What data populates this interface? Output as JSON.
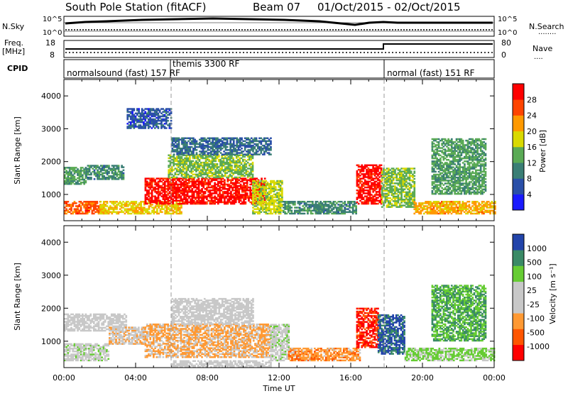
{
  "header": {
    "station": "South Pole Station (fitACF)",
    "beam": "Beam 07",
    "date_range": "01/Oct/2015 - 02/Oct/2015"
  },
  "panels": {
    "nsky_label": "N.Sky",
    "nsky_ticks": [
      "10^5",
      "10^0"
    ],
    "nsearch_label": "N.Search",
    "nsearch_ticks": [
      "10^5",
      "10^0"
    ],
    "freq_label_line1": "Freq.",
    "freq_label_line2": "[MHz]",
    "freq_ticks": [
      "18",
      "8"
    ],
    "nave_label": "Nave",
    "nave_ticks": [
      "80",
      "0"
    ],
    "cpid_label": "CPID",
    "cpid_segments": [
      {
        "label": "normalsound (fast) 157 RF",
        "start": "00:00",
        "end": "06:00"
      },
      {
        "label": "themis 3300 RF",
        "start": "06:00",
        "end": "18:00"
      },
      {
        "label": "normal (fast) 151 RF",
        "start": "18:00",
        "end": "24:00"
      }
    ]
  },
  "axes": {
    "ylabel": "Slant Range [km]",
    "xlabel": "Time UT",
    "x_ticks": [
      "00:00",
      "04:00",
      "08:00",
      "12:00",
      "16:00",
      "20:00",
      "00:00"
    ],
    "y_ticks": [
      "1000",
      "2000",
      "3000",
      "4000"
    ]
  },
  "colorbars": {
    "power": {
      "label": "Power [dB]",
      "ticks": [
        "4",
        "8",
        "12",
        "16",
        "20",
        "24",
        "28"
      ]
    },
    "velocity": {
      "label": "Velocity [m s⁻¹]",
      "ticks": [
        "1000",
        "500",
        "100",
        "25",
        "-25",
        "-100",
        "-500",
        "-1000"
      ]
    }
  },
  "chart_data": [
    {
      "type": "heatmap",
      "name_printed": "Power [dB]",
      "xlabel": "Time UT",
      "ylabel": "Slant Range [km]",
      "x_unit": "hours UT",
      "xlim": [
        0,
        24
      ],
      "ylim": [
        200,
        4500
      ],
      "zlim": [
        0,
        30
      ],
      "colors": [
        "#1a1aff",
        "#2a4fa8",
        "#3a7e75",
        "#5aaa55",
        "#d9d900",
        "#ff9900",
        "#ff4400",
        "#ff0000"
      ],
      "bands": [
        {
          "t0": 0.0,
          "t1": 1.2,
          "r0": 1300,
          "r1": 1800,
          "z": 12
        },
        {
          "t0": 1.2,
          "t1": 3.3,
          "r0": 1450,
          "r1": 1900,
          "z": 10
        },
        {
          "t0": 0.0,
          "t1": 2.0,
          "r0": 400,
          "r1": 800,
          "z": 24
        },
        {
          "t0": 2.0,
          "t1": 6.5,
          "r0": 400,
          "r1": 800,
          "z": 18
        },
        {
          "t0": 4.5,
          "t1": 11.2,
          "r0": 700,
          "r1": 1500,
          "z": 28
        },
        {
          "t0": 5.8,
          "t1": 10.5,
          "r0": 1500,
          "r1": 2200,
          "z": 14
        },
        {
          "t0": 6.0,
          "t1": 11.5,
          "r0": 2200,
          "r1": 2700,
          "z": 8
        },
        {
          "t0": 10.5,
          "t1": 12.2,
          "r0": 400,
          "r1": 1400,
          "z": 16
        },
        {
          "t0": 12.2,
          "t1": 16.3,
          "r0": 400,
          "r1": 800,
          "z": 10
        },
        {
          "t0": 16.3,
          "t1": 17.7,
          "r0": 700,
          "r1": 1900,
          "z": 28
        },
        {
          "t0": 17.7,
          "t1": 19.5,
          "r0": 600,
          "r1": 1800,
          "z": 14
        },
        {
          "t0": 19.5,
          "t1": 24.0,
          "r0": 400,
          "r1": 800,
          "z": 20
        },
        {
          "t0": 20.5,
          "t1": 23.5,
          "r0": 1000,
          "r1": 2700,
          "z": 12
        },
        {
          "t0": 3.5,
          "t1": 6.0,
          "r0": 3000,
          "r1": 3600,
          "z": 6
        }
      ]
    },
    {
      "type": "heatmap",
      "name_printed": "Velocity [m s⁻¹]",
      "xlabel": "Time UT",
      "ylabel": "Slant Range [km]",
      "x_unit": "hours UT",
      "xlim": [
        0,
        24
      ],
      "ylim": [
        200,
        4500
      ],
      "zlim": [
        -1000,
        1000
      ],
      "colors": [
        "#ff0000",
        "#ff5500",
        "#ff9933",
        "#c8c8c8",
        "#c8c8c8",
        "#66cc33",
        "#3a8a66",
        "#2244aa"
      ],
      "bands": [
        {
          "t0": 0.0,
          "t1": 3.5,
          "r0": 1300,
          "r1": 1800,
          "z": 0
        },
        {
          "t0": 0.0,
          "t1": 2.5,
          "r0": 400,
          "r1": 900,
          "z": 150
        },
        {
          "t0": 2.5,
          "t1": 4.5,
          "r0": 900,
          "r1": 1400,
          "z": -200
        },
        {
          "t0": 4.5,
          "t1": 11.5,
          "r0": 500,
          "r1": 1500,
          "z": -300
        },
        {
          "t0": 6.0,
          "t1": 10.5,
          "r0": 1500,
          "r1": 2300,
          "z": 0
        },
        {
          "t0": 11.5,
          "t1": 12.5,
          "r0": 400,
          "r1": 1500,
          "z": 150
        },
        {
          "t0": 12.5,
          "t1": 16.5,
          "r0": 400,
          "r1": 800,
          "z": -400
        },
        {
          "t0": 16.3,
          "t1": 17.5,
          "r0": 800,
          "r1": 2000,
          "z": -800
        },
        {
          "t0": 17.5,
          "t1": 19.0,
          "r0": 600,
          "r1": 1800,
          "z": 800
        },
        {
          "t0": 19.0,
          "t1": 24.0,
          "r0": 400,
          "r1": 800,
          "z": 300
        },
        {
          "t0": 20.5,
          "t1": 23.5,
          "r0": 1000,
          "r1": 2700,
          "z": 500
        },
        {
          "t0": 6.0,
          "t1": 11.5,
          "r0": 200,
          "r1": 400,
          "z": 0
        }
      ]
    }
  ]
}
